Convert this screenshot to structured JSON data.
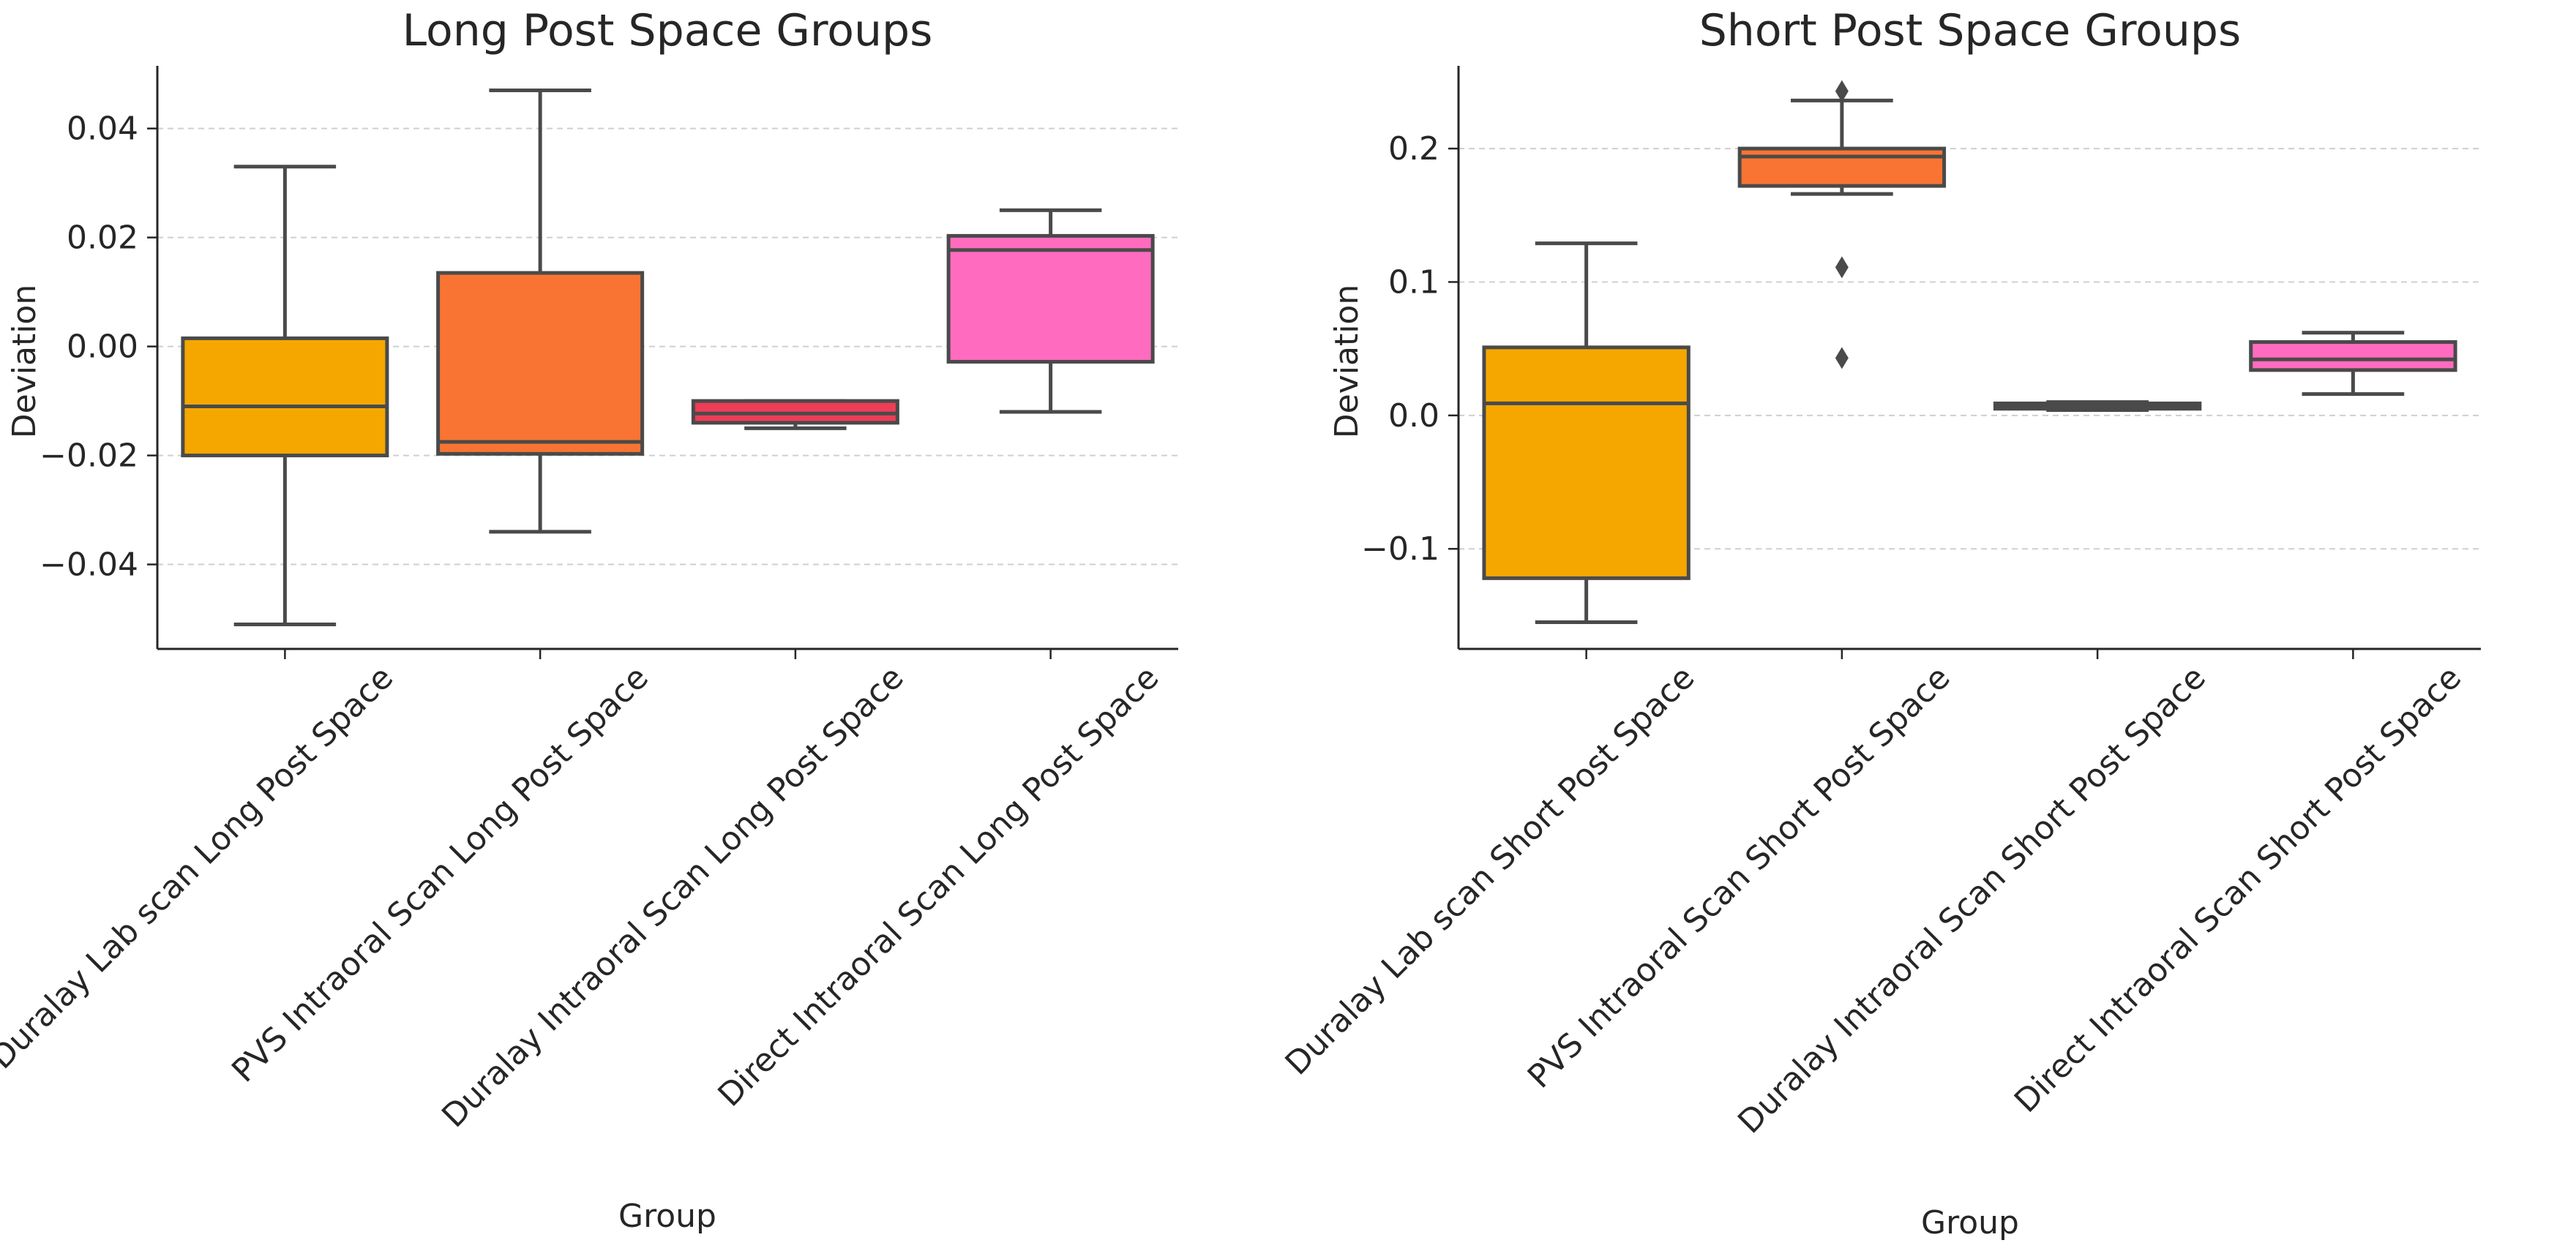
{
  "chart_data": [
    {
      "type": "box",
      "title": "Long Post Space Groups",
      "xlabel": "Group",
      "ylabel": "Deviation",
      "ylim": [
        -0.0555,
        0.0515
      ],
      "yticks": [
        -0.04,
        -0.02,
        0.0,
        0.02,
        0.04
      ],
      "ytick_labels": [
        "−0.04",
        "−0.02",
        "0.00",
        "0.02",
        "0.04"
      ],
      "grid": "y-dashed",
      "categories": [
        "Duralay Lab scan Long Post Space",
        "PVS Intraoral Scan Long Post Space",
        "Duralay Intraoral Scan Long Post Space",
        "Direct Intraoral Scan Long Post Space"
      ],
      "boxes": [
        {
          "whisker_low": -0.051,
          "q1": -0.02,
          "median": -0.011,
          "q3": 0.0015,
          "whisker_high": 0.033,
          "outliers": [],
          "color": "#F5A700"
        },
        {
          "whisker_low": -0.034,
          "q1": -0.0197,
          "median": -0.0175,
          "q3": 0.0135,
          "whisker_high": 0.047,
          "outliers": [],
          "color": "#F97432"
        },
        {
          "whisker_low": -0.015,
          "q1": -0.014,
          "median": -0.0123,
          "q3": -0.01,
          "whisker_high": -0.01,
          "outliers": [],
          "color": "#EE3D57"
        },
        {
          "whisker_low": -0.012,
          "q1": -0.0028,
          "median": 0.0177,
          "q3": 0.0203,
          "whisker_high": 0.025,
          "outliers": [],
          "color": "#FF6BBF"
        }
      ]
    },
    {
      "type": "box",
      "title": "Short Post Space Groups",
      "xlabel": "Group",
      "ylabel": "Deviation",
      "ylim": [
        -0.175,
        0.262
      ],
      "yticks": [
        -0.1,
        0.0,
        0.1,
        0.2
      ],
      "ytick_labels": [
        "−0.1",
        "0.0",
        "0.1",
        "0.2"
      ],
      "grid": "y-dashed",
      "categories": [
        "Duralay Lab scan Short Post Space",
        "PVS Intraoral Scan Short Post Space",
        "Duralay Intraoral Scan Short Post Space",
        "Direct Intraoral Scan Short Post Space"
      ],
      "boxes": [
        {
          "whisker_low": -0.155,
          "q1": -0.122,
          "median": 0.009,
          "q3": 0.051,
          "whisker_high": 0.129,
          "outliers": [],
          "color": "#F5A700"
        },
        {
          "whisker_low": 0.166,
          "q1": 0.172,
          "median": 0.194,
          "q3": 0.2,
          "whisker_high": 0.236,
          "outliers": [
            0.243,
            0.111,
            0.043
          ],
          "color": "#F97432"
        },
        {
          "whisker_low": 0.004,
          "q1": 0.005,
          "median": 0.007,
          "q3": 0.009,
          "whisker_high": 0.01,
          "outliers": [],
          "color": "#EE3D57"
        },
        {
          "whisker_low": 0.016,
          "q1": 0.034,
          "median": 0.042,
          "q3": 0.055,
          "whisker_high": 0.062,
          "outliers": [],
          "color": "#FF6BBF"
        }
      ]
    }
  ]
}
